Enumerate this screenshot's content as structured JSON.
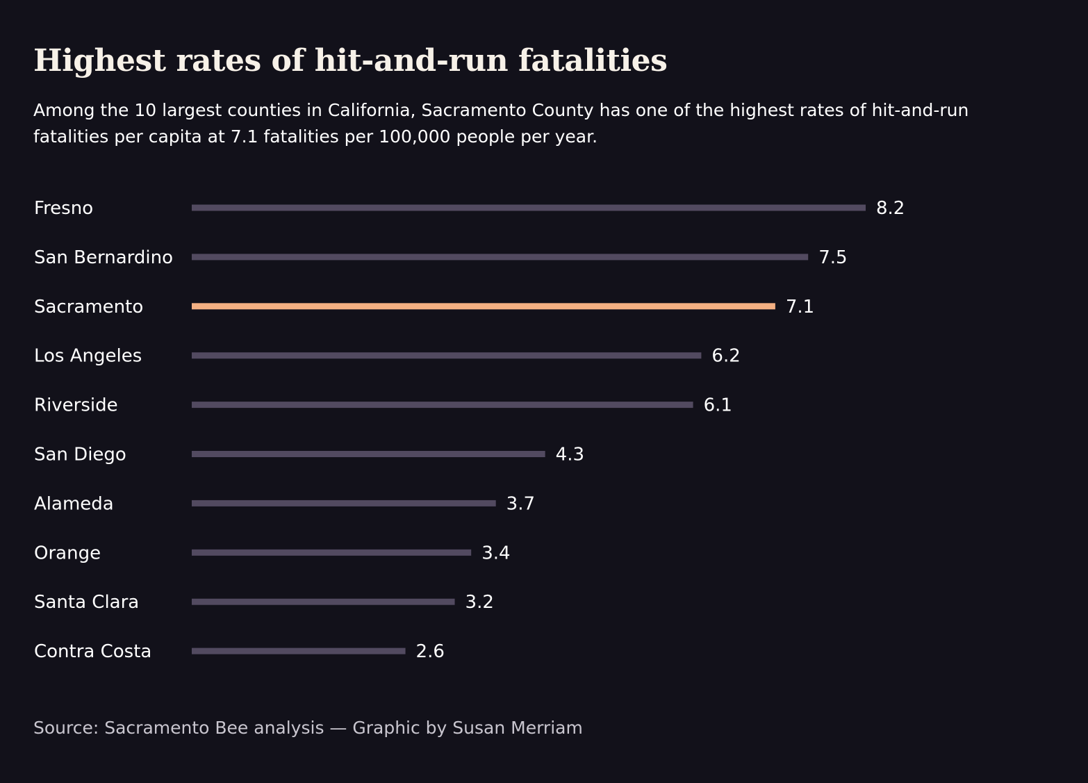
{
  "title": "Highest rates of hit-and-run fatalities",
  "subtitle": "Among the 10 largest counties in California, Sacramento County has one of the highest rates of hit-and-run fatalities per capita at 7.1 fatalities per 100,000 people per year.",
  "source": "Source: Sacramento Bee analysis — Graphic by Susan Merriam",
  "colors": {
    "background": "#12111a",
    "bar": "#524a60",
    "highlight": "#f3b083",
    "text": "#ffffff",
    "muted_text": "#c9c6cf"
  },
  "chart_data": {
    "type": "bar",
    "orientation": "horizontal",
    "categories": [
      "Fresno",
      "San Bernardino",
      "Sacramento",
      "Los Angeles",
      "Riverside",
      "San Diego",
      "Alameda",
      "Orange",
      "Santa Clara",
      "Contra Costa"
    ],
    "values": [
      8.2,
      7.5,
      7.1,
      6.2,
      6.1,
      4.3,
      3.7,
      3.4,
      3.2,
      2.6
    ],
    "value_labels": [
      "8.2",
      "7.5",
      "7.1",
      "6.2",
      "6.1",
      "4.3",
      "3.7",
      "3.4",
      "3.2",
      "2.6"
    ],
    "highlight": "Sacramento",
    "xlim": [
      0,
      8.2
    ],
    "grid": false,
    "legend": "none"
  }
}
